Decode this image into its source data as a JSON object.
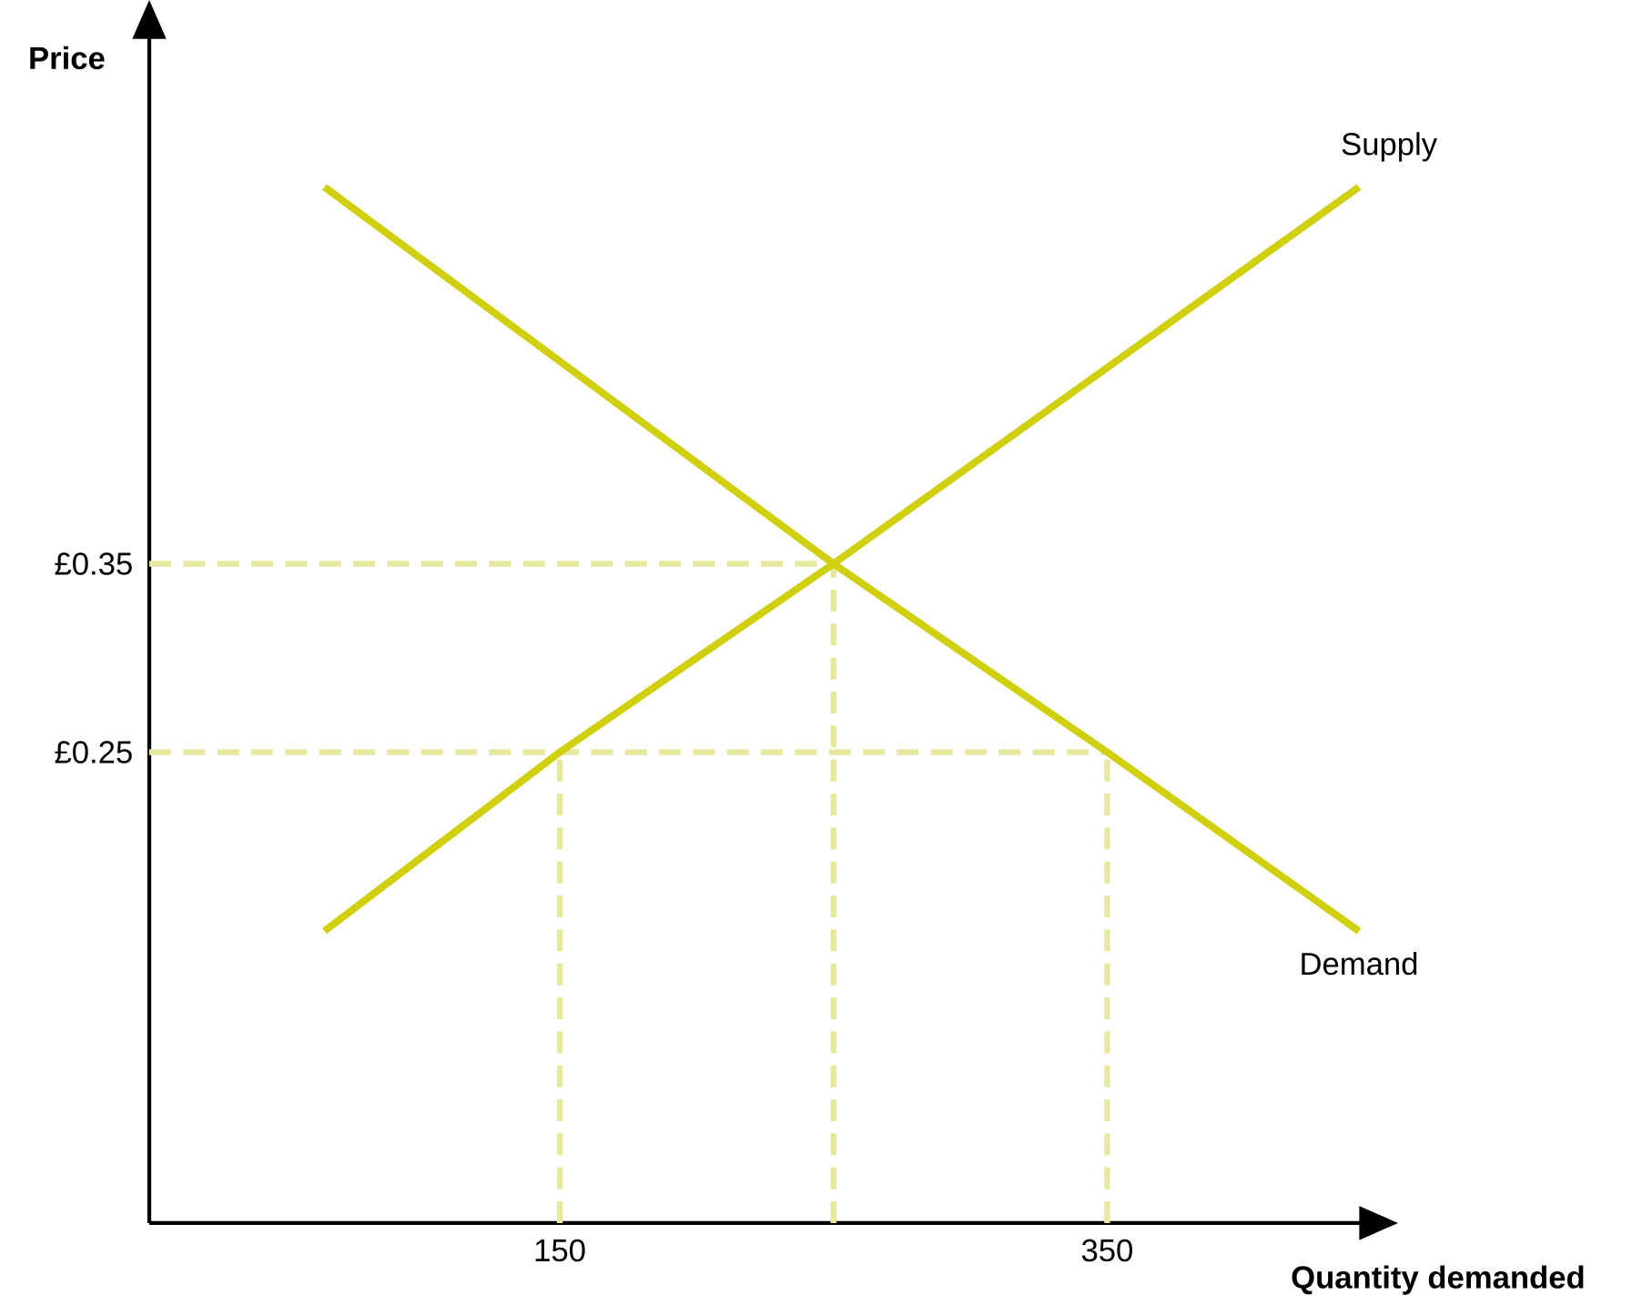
{
  "chart_data": {
    "type": "line",
    "xlabel": "Quantity demanded",
    "ylabel": "Price",
    "xlim": [
      0,
      443
    ],
    "ylim": [
      0,
      0.63
    ],
    "xticks": [
      150,
      350
    ],
    "yticks": [
      {
        "value": 0.25,
        "label": "£0.25"
      },
      {
        "value": 0.35,
        "label": "£0.35"
      }
    ],
    "line_style": "solid",
    "series": [
      {
        "name": "Demand",
        "color": "#d0d010",
        "x": [
          64,
          250,
          350,
          442
        ],
        "values": [
          0.55,
          0.35,
          0.25,
          0.155
        ]
      },
      {
        "name": "Supply",
        "color": "#d0d010",
        "x": [
          64,
          150,
          250,
          442
        ],
        "values": [
          0.155,
          0.25,
          0.35,
          0.55
        ]
      },
      {
        "color": "#e8e8a0",
        "line_style": "dashed",
        "x": [
          0,
          350
        ],
        "values": [
          0.25,
          0.25
        ]
      },
      {
        "color": "#e8e8a0",
        "line_style": "dashed",
        "x": [
          0,
          250
        ],
        "values": [
          0.35,
          0.35
        ]
      },
      {
        "color": "#e8e8a0",
        "line_style": "dashed",
        "x": [
          150,
          150
        ],
        "values": [
          0,
          0.25
        ]
      },
      {
        "color": "#e8e8a0",
        "line_style": "dashed",
        "x": [
          250,
          250
        ],
        "values": [
          0,
          0.35
        ]
      },
      {
        "color": "#e8e8a0",
        "line_style": "dashed",
        "x": [
          350,
          350
        ],
        "values": [
          0,
          0.25
        ]
      }
    ]
  }
}
